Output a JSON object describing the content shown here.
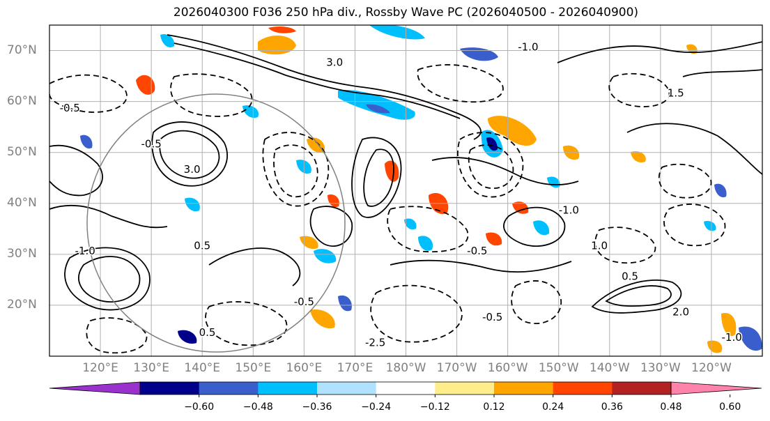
{
  "title": "2026040300 F036 250 hPa div., Rossby Wave PC (2026040500 - 2026040900)",
  "map": {
    "region": "North Pacific",
    "lat_labels": [
      "70°N",
      "60°N",
      "50°N",
      "40°N",
      "30°N",
      "20°N"
    ],
    "lon_labels": [
      "120°E",
      "130°E",
      "140°E",
      "150°E",
      "160°E",
      "170°E",
      "180°W",
      "170°W",
      "160°W",
      "150°W",
      "140°W",
      "130°W",
      "120°W"
    ],
    "contour_labels": [
      {
        "text": "3.0",
        "lon": 166,
        "lat": 67
      },
      {
        "text": "-1.0",
        "lon": 204,
        "lat": 70
      },
      {
        "text": "-0.5",
        "lon": 114,
        "lat": 58
      },
      {
        "text": "3.0",
        "lon": 138,
        "lat": 46
      },
      {
        "text": "-0.5",
        "lon": 130,
        "lat": 51
      },
      {
        "text": "1.5",
        "lon": 233,
        "lat": 61
      },
      {
        "text": "-1.0",
        "lon": 212,
        "lat": 38
      },
      {
        "text": "1.0",
        "lon": 218,
        "lat": 31
      },
      {
        "text": "-0.5",
        "lon": 194,
        "lat": 30
      },
      {
        "text": "0.5",
        "lon": 140,
        "lat": 31
      },
      {
        "text": "-1.0",
        "lon": 117,
        "lat": 30
      },
      {
        "text": "-0.5",
        "lon": 160,
        "lat": 20
      },
      {
        "text": "2.0",
        "lon": 234,
        "lat": 18
      },
      {
        "text": "-1.0",
        "lon": 244,
        "lat": 13
      },
      {
        "text": "-0.5",
        "lon": 197,
        "lat": 17
      },
      {
        "text": "0.5",
        "lon": 141,
        "lat": 14
      },
      {
        "text": "0.5",
        "lon": 224,
        "lat": 25
      },
      {
        "text": "-2.5",
        "lon": 174,
        "lat": 12
      }
    ]
  },
  "colorbar": {
    "colors": [
      "#9932CC",
      "#00008B",
      "#3A5FCD",
      "#00BFFF",
      "#B0E2FF",
      "#FFFFFF",
      "#FFEC8B",
      "#FFA500",
      "#FF4500",
      "#B22222",
      "#FF82AB"
    ],
    "tick_labels": [
      "−0.60",
      "−0.48",
      "−0.36",
      "−0.24",
      "−0.12",
      "0.12",
      "0.24",
      "0.36",
      "0.48",
      "0.60"
    ]
  }
}
